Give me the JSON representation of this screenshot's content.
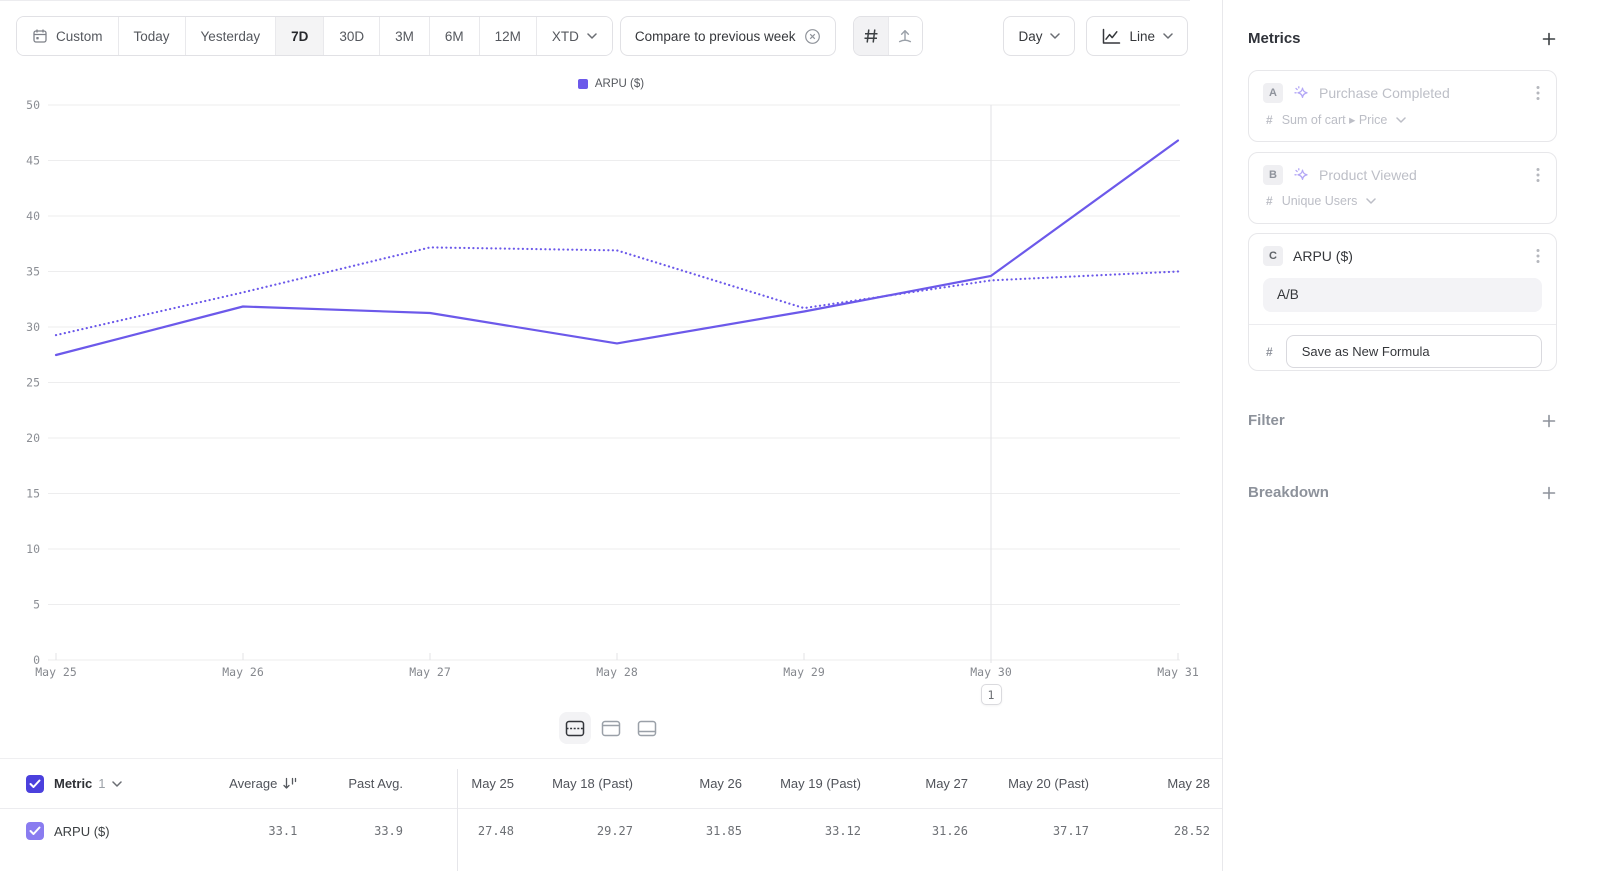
{
  "toolbar": {
    "date_ranges": [
      {
        "label": "Custom",
        "icon": "calendar"
      },
      {
        "label": "Today"
      },
      {
        "label": "Yesterday"
      },
      {
        "label": "7D",
        "active": true
      },
      {
        "label": "30D"
      },
      {
        "label": "3M"
      },
      {
        "label": "6M"
      },
      {
        "label": "12M"
      },
      {
        "label": "XTD",
        "chevron": true
      }
    ],
    "compare_label": "Compare to previous week",
    "granularity_label": "Day",
    "chart_type_label": "Line"
  },
  "chart_data": {
    "type": "line",
    "legend": "ARPU ($)",
    "x_labels": [
      "May 25",
      "May 26",
      "May 27",
      "May 28",
      "May 29",
      "May 30",
      "May 31"
    ],
    "series": [
      {
        "name": "ARPU ($)",
        "style": "solid",
        "values": [
          27.48,
          31.85,
          31.26,
          28.52,
          31.4,
          34.6,
          46.8
        ]
      },
      {
        "name": "ARPU ($) (Past)",
        "style": "dotted",
        "values": [
          29.27,
          33.12,
          37.17,
          36.9,
          31.7,
          34.2,
          35.0
        ]
      }
    ],
    "ylim": [
      0,
      50
    ],
    "y_tick_step": 5,
    "grid": true,
    "legend_position": "top-center",
    "line_color": "#6c59ea",
    "annotation": {
      "x_index": 5,
      "label": "1"
    }
  },
  "table": {
    "metric_header": "Metric",
    "metric_count": "1",
    "avg_header": "Average",
    "past_avg_header": "Past Avg.",
    "date_columns": [
      "May 25",
      "May 18 (Past)",
      "May 26",
      "May 19 (Past)",
      "May 27",
      "May 20 (Past)",
      "May 28"
    ],
    "rows": [
      {
        "label": "ARPU ($)",
        "checked": true,
        "average": "33.1",
        "past_average": "33.9",
        "values": [
          "27.48",
          "29.27",
          "31.85",
          "33.12",
          "31.26",
          "37.17",
          "28.52"
        ]
      }
    ]
  },
  "sidebar": {
    "metrics_title": "Metrics",
    "metrics": [
      {
        "badge": "A",
        "name": "Purchase Completed",
        "measure": "Sum of cart ▸ Price",
        "disabled": true
      },
      {
        "badge": "B",
        "name": "Product Viewed",
        "measure": "Unique Users",
        "disabled": true
      },
      {
        "badge": "C",
        "name": "ARPU ($)",
        "formula": "A/B",
        "save_button_label": "Save as New Formula"
      }
    ],
    "filter_title": "Filter",
    "breakdown_title": "Breakdown"
  }
}
